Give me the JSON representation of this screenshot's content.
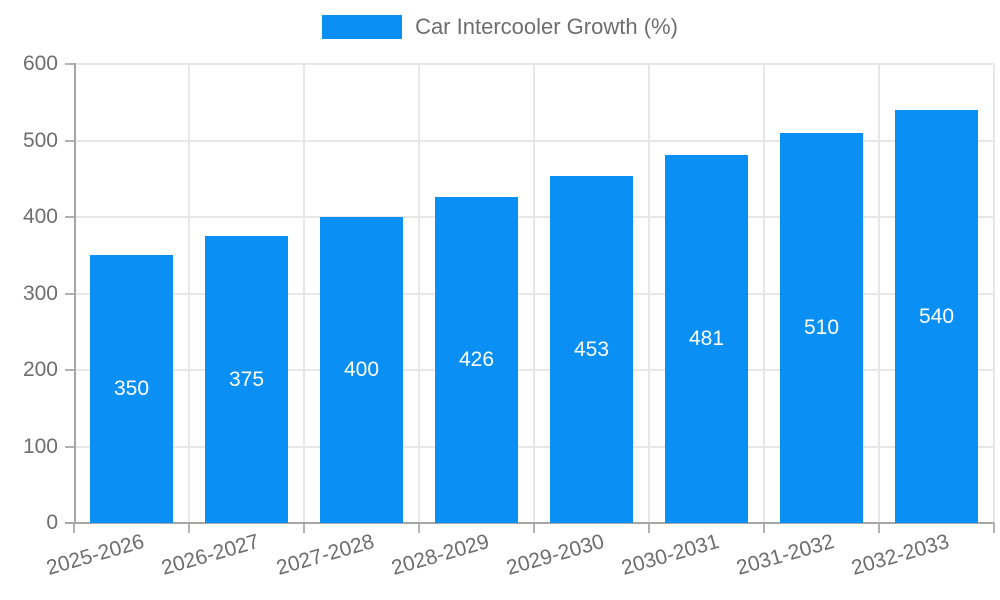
{
  "legend": {
    "label": "Car Intercooler Growth (%)"
  },
  "chart_data": {
    "type": "bar",
    "title": "Car Intercooler Growth (%)",
    "categories": [
      "2025-2026",
      "2026-2027",
      "2027-2028",
      "2028-2029",
      "2029-2030",
      "2030-2031",
      "2031-2032",
      "2032-2033"
    ],
    "values": [
      350,
      375,
      400,
      426,
      453,
      481,
      510,
      540
    ],
    "value_labels": [
      "350",
      "375",
      "400",
      "426",
      "453",
      "481",
      "510",
      "540"
    ],
    "xlabel": "",
    "ylabel": "",
    "ylim": [
      0,
      600
    ],
    "ytick_step": 100,
    "ytick_labels": [
      "0",
      "100",
      "200",
      "300",
      "400",
      "500",
      "600"
    ],
    "grid": true,
    "legend_position": "top",
    "bar_color": "#0a90f5",
    "value_label_color": "#ffffff",
    "axis_color": "#a6a6a6",
    "grid_color": "#e7e7e7",
    "tick_label_color": "#6e6e6e",
    "x_label_rotation_deg": -16
  }
}
